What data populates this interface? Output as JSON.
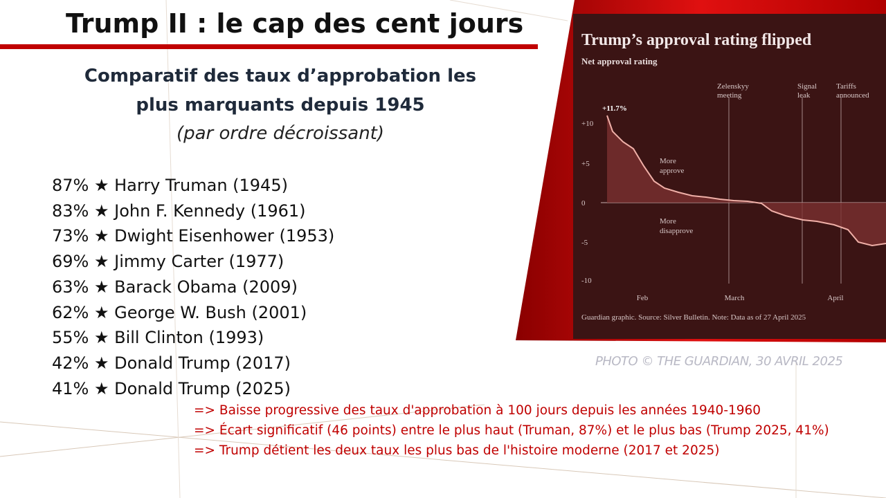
{
  "header": {
    "title": "Trump II : le cap des cent jours"
  },
  "subtitle": {
    "lines": [
      "Comparatif des taux d’approbation les",
      "plus marquants depuis 1945"
    ],
    "note": "(par ordre décroissant)"
  },
  "list": {
    "items": [
      "87% ★ Harry Truman (1945)",
      "83% ★ John F. Kennedy (1961)",
      "73% ★ Dwight Eisenhower (1953)",
      "69% ★ Jimmy Carter (1977)",
      "63% ★ Barack Obama (2009)",
      "62% ★ George W. Bush (2001)",
      "55% ★ Bill Clinton (1993)",
      "42% ★ Donald Trump (2017)",
      "41% ★ Donald Trump (2025)"
    ]
  },
  "notes": [
    "=> Baisse progressive des taux d'approbation à 100 jours depuis les années 1940-1960",
    "=> Écart significatif (46 points) entre le plus haut (Truman, 87%) et le plus bas (Trump 2025, 41%)",
    "=> Trump détient les deux taux les plus bas de l'histoire moderne (2017 et 2025)"
  ],
  "photo": {
    "title": "Trump’s approval rating flipped",
    "subtitle": "Net approval rating",
    "peak_label": "+11.7%",
    "y_labels": [
      "+10",
      "+5",
      "0",
      "-5",
      "-10"
    ],
    "x_labels": [
      "Feb",
      "March",
      "April"
    ],
    "events": [
      [
        "Zelenskyy",
        "meeting"
      ],
      [
        "Signal",
        "leak"
      ],
      [
        "Tariffs",
        "announced"
      ]
    ],
    "approve": [
      "More",
      "approve"
    ],
    "disapprove": [
      "More",
      "disapprove"
    ],
    "source": "Guardian graphic. Source: Silver Bulletin. Note: Data as of 27 April 2025",
    "credit": "PHOTO © THE GUARDIAN, 30 AVRIL 2025"
  }
}
